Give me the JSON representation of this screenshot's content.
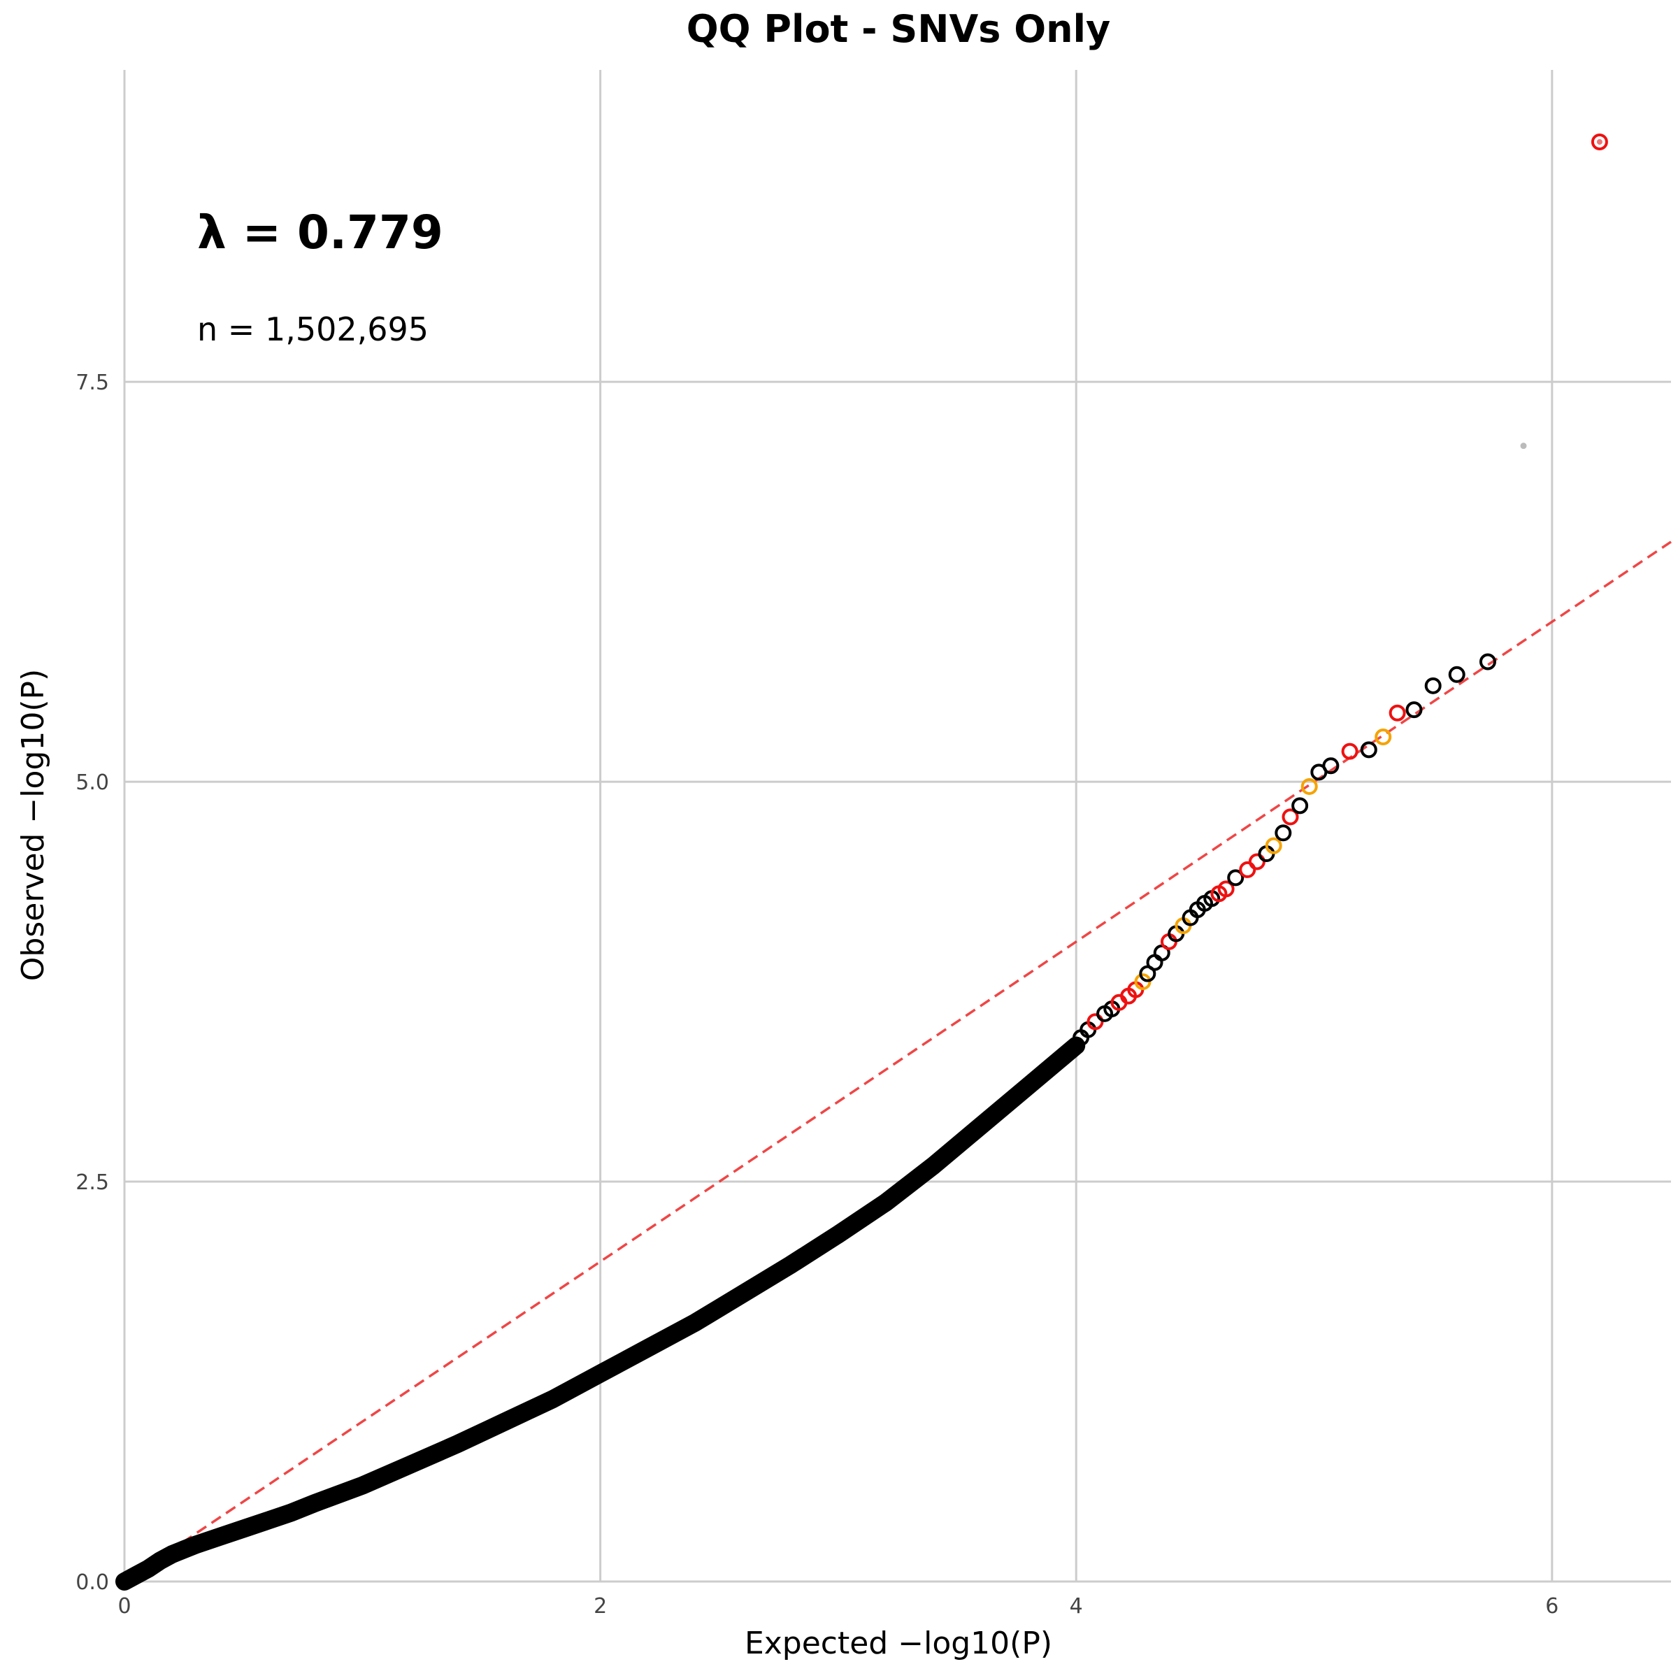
{
  "chart_data": {
    "type": "scatter",
    "title": "QQ Plot - SNVs Only",
    "xlabel": "Expected −log10(P)",
    "ylabel": "Observed −log10(P)",
    "xlim": [
      0,
      6.5
    ],
    "ylim": [
      0,
      9.45
    ],
    "x_ticks": [
      0,
      2,
      4,
      6
    ],
    "y_ticks": [
      0.0,
      2.5,
      5.0,
      7.5
    ],
    "x_tick_labels": [
      "0",
      "2",
      "4",
      "6"
    ],
    "y_tick_labels": [
      "0.0",
      "2.5",
      "5.0",
      "7.5"
    ],
    "grid": true,
    "annotations": {
      "lambda_text": "λ = 0.779",
      "n_text": "n = 1,502,695"
    },
    "reference_line": {
      "style": "dashed",
      "color": "#ee3333",
      "slope": 1,
      "intercept": 0
    },
    "colors": {
      "black": "#000000",
      "orange": "#f5a300",
      "red": "#ee1111",
      "grey": "#bbbbbb"
    },
    "curve": [
      [
        0.0,
        0.0
      ],
      [
        0.05,
        0.04
      ],
      [
        0.1,
        0.08
      ],
      [
        0.15,
        0.13
      ],
      [
        0.2,
        0.17
      ],
      [
        0.25,
        0.2
      ],
      [
        0.3,
        0.23
      ],
      [
        0.4,
        0.28
      ],
      [
        0.5,
        0.33
      ],
      [
        0.6,
        0.38
      ],
      [
        0.7,
        0.43
      ],
      [
        0.8,
        0.49
      ],
      [
        1.0,
        0.6
      ],
      [
        1.2,
        0.73
      ],
      [
        1.4,
        0.86
      ],
      [
        1.6,
        1.0
      ],
      [
        1.8,
        1.14
      ],
      [
        2.0,
        1.3
      ],
      [
        2.2,
        1.46
      ],
      [
        2.4,
        1.62
      ],
      [
        2.6,
        1.8
      ],
      [
        2.8,
        1.98
      ],
      [
        3.0,
        2.17
      ],
      [
        3.2,
        2.37
      ],
      [
        3.4,
        2.6
      ],
      [
        3.6,
        2.85
      ],
      [
        3.8,
        3.1
      ],
      [
        4.0,
        3.35
      ]
    ],
    "points": [
      {
        "x": 4.02,
        "y": 3.4,
        "c": "black"
      },
      {
        "x": 4.05,
        "y": 3.45,
        "c": "black"
      },
      {
        "x": 4.08,
        "y": 3.5,
        "c": "red"
      },
      {
        "x": 4.12,
        "y": 3.55,
        "c": "black"
      },
      {
        "x": 4.15,
        "y": 3.58,
        "c": "black"
      },
      {
        "x": 4.18,
        "y": 3.62,
        "c": "red"
      },
      {
        "x": 4.22,
        "y": 3.66,
        "c": "red"
      },
      {
        "x": 4.25,
        "y": 3.7,
        "c": "red"
      },
      {
        "x": 4.28,
        "y": 3.75,
        "c": "orange"
      },
      {
        "x": 4.3,
        "y": 3.8,
        "c": "black"
      },
      {
        "x": 4.33,
        "y": 3.87,
        "c": "black"
      },
      {
        "x": 4.36,
        "y": 3.93,
        "c": "black"
      },
      {
        "x": 4.39,
        "y": 4.0,
        "c": "red"
      },
      {
        "x": 4.42,
        "y": 4.05,
        "c": "black"
      },
      {
        "x": 4.45,
        "y": 4.1,
        "c": "orange"
      },
      {
        "x": 4.48,
        "y": 4.15,
        "c": "black"
      },
      {
        "x": 4.51,
        "y": 4.2,
        "c": "black"
      },
      {
        "x": 4.54,
        "y": 4.24,
        "c": "black"
      },
      {
        "x": 4.57,
        "y": 4.27,
        "c": "black"
      },
      {
        "x": 4.6,
        "y": 4.3,
        "c": "red"
      },
      {
        "x": 4.63,
        "y": 4.33,
        "c": "red"
      },
      {
        "x": 4.67,
        "y": 4.4,
        "c": "black"
      },
      {
        "x": 4.72,
        "y": 4.45,
        "c": "red"
      },
      {
        "x": 4.76,
        "y": 4.5,
        "c": "red"
      },
      {
        "x": 4.8,
        "y": 4.55,
        "c": "black"
      },
      {
        "x": 4.83,
        "y": 4.6,
        "c": "orange"
      },
      {
        "x": 4.87,
        "y": 4.68,
        "c": "black"
      },
      {
        "x": 4.9,
        "y": 4.78,
        "c": "red"
      },
      {
        "x": 4.94,
        "y": 4.85,
        "c": "black"
      },
      {
        "x": 4.98,
        "y": 4.97,
        "c": "orange"
      },
      {
        "x": 5.02,
        "y": 5.06,
        "c": "black"
      },
      {
        "x": 5.07,
        "y": 5.1,
        "c": "black"
      },
      {
        "x": 5.15,
        "y": 5.19,
        "c": "red"
      },
      {
        "x": 5.23,
        "y": 5.2,
        "c": "black"
      },
      {
        "x": 5.29,
        "y": 5.28,
        "c": "orange"
      },
      {
        "x": 5.35,
        "y": 5.43,
        "c": "red"
      },
      {
        "x": 5.42,
        "y": 5.45,
        "c": "black"
      },
      {
        "x": 5.5,
        "y": 5.6,
        "c": "black"
      },
      {
        "x": 5.6,
        "y": 5.67,
        "c": "black"
      },
      {
        "x": 5.73,
        "y": 5.75,
        "c": "black"
      },
      {
        "x": 6.2,
        "y": 9.0,
        "c": "red"
      }
    ],
    "outlier_dot": {
      "x": 5.88,
      "y": 7.1,
      "c": "grey"
    }
  }
}
